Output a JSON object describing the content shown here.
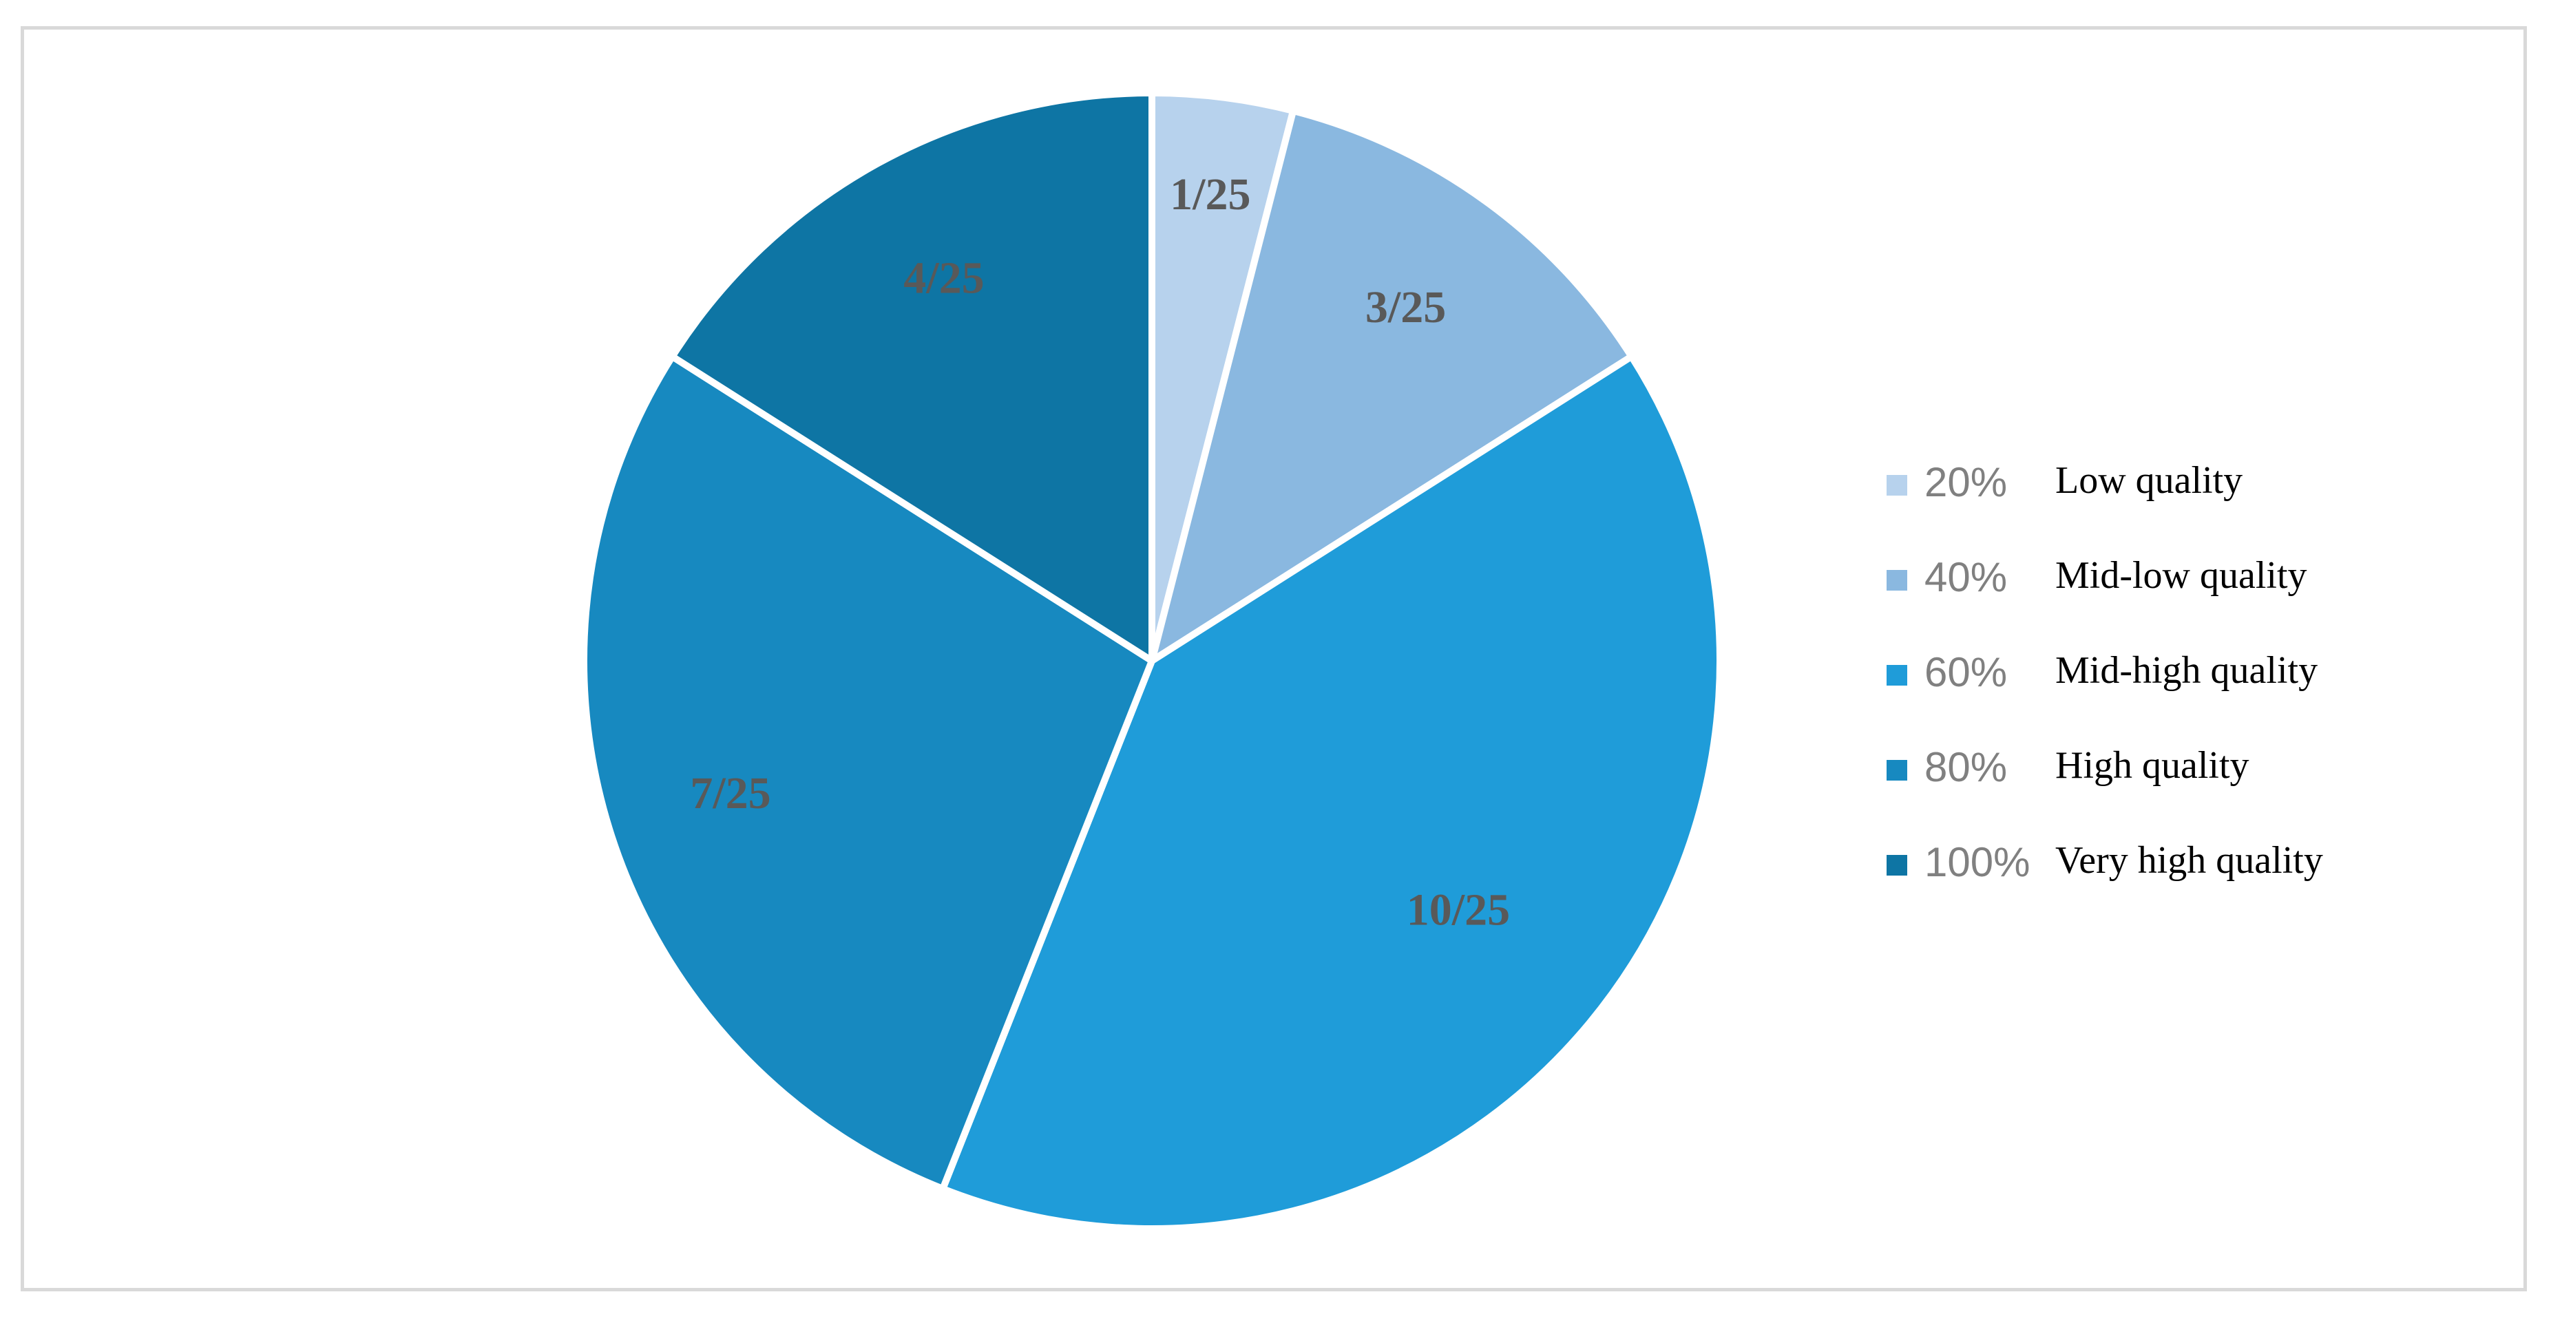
{
  "chart_data": {
    "type": "pie",
    "title": "",
    "start_angle_deg": 0,
    "direction": "clockwise",
    "slices": [
      {
        "label": "1/25",
        "value": 1,
        "color": "#b7d2ed"
      },
      {
        "label": "3/25",
        "value": 3,
        "color": "#8ab8e0"
      },
      {
        "label": "10/25",
        "value": 10,
        "color": "#1f9cd9"
      },
      {
        "label": "7/25",
        "value": 7,
        "color": "#1789c0"
      },
      {
        "label": "4/25",
        "value": 4,
        "color": "#0e75a4"
      }
    ],
    "legend": {
      "placement": "right",
      "entries": [
        {
          "percent": "20%",
          "name": "Low quality",
          "color": "#b7d2ed"
        },
        {
          "percent": "40%",
          "name": "Mid-low quality",
          "color": "#8ab8e0"
        },
        {
          "percent": "60%",
          "name": "Mid-high quality",
          "color": "#1f9cd9"
        },
        {
          "percent": "80%",
          "name": "High quality",
          "color": "#1789c0"
        },
        {
          "percent": "100%",
          "name": "Very high quality",
          "color": "#0e75a4"
        }
      ]
    },
    "slice_separator_color": "#ffffff"
  }
}
